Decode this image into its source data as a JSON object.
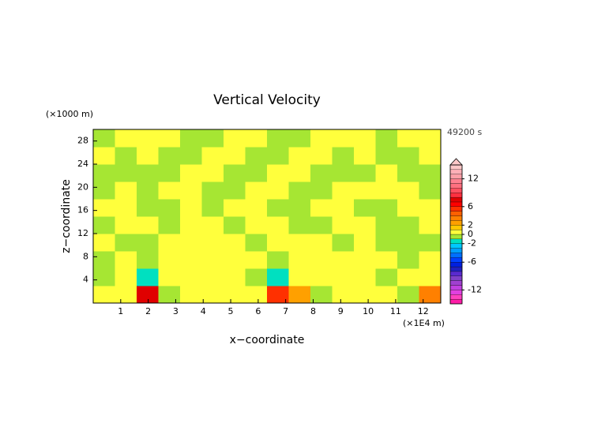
{
  "chart_data": {
    "type": "contour",
    "title": "Vertical Velocity",
    "x_label": "x−coordinate",
    "y_label": "z−coordinate",
    "x_unit": "(×1E4 m)",
    "y_unit": "(×1000 m)",
    "time": "49200 s",
    "xlim": [
      0,
      12.64
    ],
    "ylim": [
      0,
      30
    ],
    "xticks": [
      1,
      2,
      3,
      4,
      5,
      6,
      7,
      8,
      9,
      10,
      11,
      12
    ],
    "yticks": [
      4,
      8,
      12,
      16,
      20,
      24,
      28
    ],
    "z": [
      [
        0.5,
        0.5,
        7.5,
        -0.5,
        0.5,
        0.5,
        0.5,
        0.5,
        5.5,
        2.5,
        -0.5,
        0.5,
        0.5,
        0.5,
        -0.5,
        3.5
      ],
      [
        -0.5,
        0.5,
        -1.5,
        0.5,
        0.5,
        0.5,
        0.5,
        -0.5,
        -1.5,
        0.5,
        0.5,
        0.5,
        0.5,
        -0.5,
        0.5,
        0.5
      ],
      [
        -0.5,
        0.5,
        -0.5,
        0.5,
        0.5,
        0.5,
        0.5,
        0.5,
        -0.5,
        0.5,
        0.5,
        0.5,
        0.5,
        0.5,
        -0.5,
        0.5
      ],
      [
        0.5,
        -0.5,
        -0.5,
        0.5,
        0.5,
        0.5,
        0.5,
        -0.5,
        0.5,
        0.5,
        0.5,
        -0.5,
        0.5,
        -0.5,
        -0.5,
        -0.5
      ],
      [
        -0.5,
        0.5,
        0.5,
        -0.5,
        0.5,
        0.5,
        -0.5,
        0.5,
        0.5,
        -0.5,
        -0.5,
        0.5,
        0.5,
        -0.5,
        -0.5,
        0.5
      ],
      [
        0.5,
        0.5,
        -0.5,
        -0.5,
        0.5,
        -0.5,
        0.5,
        0.5,
        -0.5,
        -0.5,
        0.5,
        0.5,
        -0.5,
        -0.5,
        0.5,
        0.5
      ],
      [
        -0.5,
        0.5,
        -0.5,
        0.5,
        0.5,
        -0.5,
        -0.5,
        0.5,
        0.5,
        -0.5,
        -0.5,
        0.5,
        0.5,
        0.5,
        0.5,
        -0.5
      ],
      [
        -0.5,
        -0.5,
        -0.5,
        -0.5,
        0.5,
        0.5,
        -0.5,
        -0.5,
        0.5,
        0.5,
        -0.5,
        -0.5,
        -0.5,
        0.5,
        -0.5,
        -0.5
      ],
      [
        0.5,
        -0.5,
        0.5,
        -0.5,
        -0.5,
        0.5,
        0.5,
        -0.5,
        -0.5,
        0.5,
        0.5,
        -0.5,
        0.5,
        -0.5,
        -0.5,
        0.5
      ],
      [
        -0.5,
        0.5,
        0.5,
        0.5,
        -0.5,
        -0.5,
        0.5,
        0.5,
        -0.5,
        -0.5,
        0.5,
        0.5,
        0.5,
        -0.5,
        0.5,
        0.5
      ]
    ],
    "colorbar": {
      "levels": [
        -15,
        -14,
        -13,
        -12,
        -11,
        -10,
        -9,
        -8,
        -7,
        -6,
        -5,
        -4,
        -3,
        -2,
        -1,
        0,
        1,
        2,
        3,
        4,
        5,
        6,
        7,
        8,
        9,
        10,
        11,
        12,
        13,
        14,
        15
      ],
      "colors": [
        "#ff1ca8",
        "#ff40c0",
        "#e040e0",
        "#c040e0",
        "#a040d0",
        "#8040c8",
        "#5a2ad0",
        "#2020c0",
        "#0020e0",
        "#0040ff",
        "#0070ff",
        "#00a0ff",
        "#00c8ff",
        "#00e0c0",
        "#a6e633",
        "#ffff3c",
        "#ffc800",
        "#ffa000",
        "#ff8000",
        "#ff6000",
        "#ff3000",
        "#ff0000",
        "#e00000",
        "#ff3040",
        "#ff5060",
        "#ff7080",
        "#ff8090",
        "#ffa0a8",
        "#ffb0b8",
        "#ffc8c8"
      ],
      "ticks": [
        12,
        6,
        2,
        0,
        -2,
        -6,
        -12
      ]
    }
  }
}
